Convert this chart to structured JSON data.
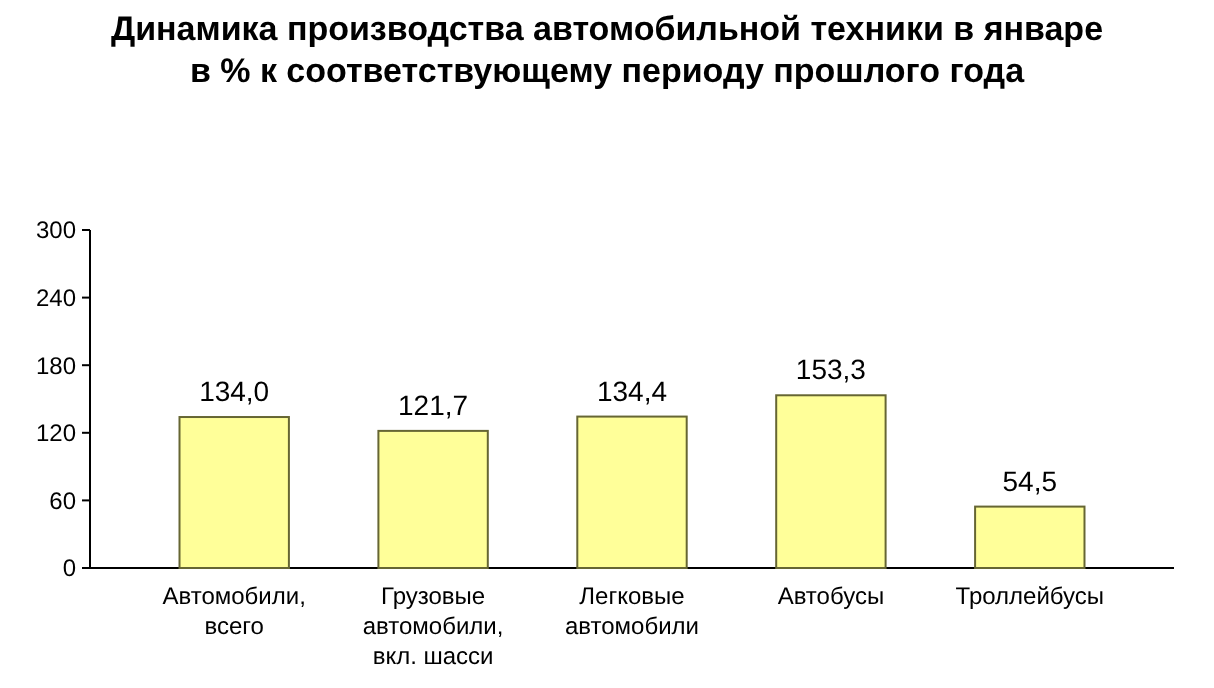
{
  "chart_data": {
    "type": "bar",
    "title": "Динамика производства автомобильной техники в январе в % к соответствующему периоду прошлого года",
    "categories": [
      "Автомобили, всего",
      "Грузовые автомобили, вкл. шасси",
      "Легковые автомобили",
      "Автобусы",
      "Троллейбусы"
    ],
    "values": [
      134.0,
      121.7,
      134.4,
      153.3,
      54.5
    ],
    "value_labels": [
      "134,0",
      "121,7",
      "134,4",
      "153,3",
      "54,5"
    ],
    "color": "#ffff99",
    "ylim": [
      0,
      300
    ],
    "yticks": [
      0,
      60,
      120,
      180,
      240,
      300
    ]
  }
}
